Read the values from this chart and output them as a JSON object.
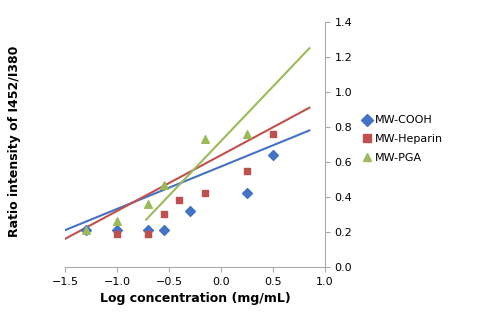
{
  "xlabel": "Log concentration (mg/mL)",
  "ylabel": "Ratio intensity of I452/I380",
  "xlim": [
    -1.5,
    1.0
  ],
  "ylim": [
    0,
    1.4
  ],
  "xticks": [
    -1.5,
    -1.0,
    -0.5,
    0.0,
    0.5,
    1.0
  ],
  "yticks": [
    0,
    0.2,
    0.4,
    0.6,
    0.8,
    1.0,
    1.2,
    1.4
  ],
  "mw_cooh_x": [
    -1.3,
    -1.0,
    -0.7,
    -0.55,
    -0.3,
    0.25,
    0.5
  ],
  "mw_cooh_y": [
    0.21,
    0.21,
    0.21,
    0.21,
    0.32,
    0.42,
    0.64
  ],
  "mw_cooh_color": "#4472C4",
  "mw_cooh_line_x": [
    -1.5,
    0.85
  ],
  "mw_cooh_line_y": [
    0.21,
    0.78
  ],
  "mw_heparin_x": [
    -1.0,
    -0.7,
    -0.55,
    -0.4,
    -0.15,
    0.25,
    0.5
  ],
  "mw_heparin_y": [
    0.19,
    0.19,
    0.3,
    0.38,
    0.42,
    0.55,
    0.76
  ],
  "mw_heparin_color": "#C0504D",
  "mw_heparin_line_x": [
    -1.5,
    0.85
  ],
  "mw_heparin_line_y": [
    0.16,
    0.91
  ],
  "mw_pga_x": [
    -1.3,
    -1.0,
    -0.7,
    -0.55,
    -0.15,
    0.25
  ],
  "mw_pga_y": [
    0.21,
    0.26,
    0.36,
    0.47,
    0.73,
    0.76
  ],
  "mw_pga_color": "#9BBB59",
  "mw_pga_line_x": [
    -0.72,
    0.85
  ],
  "mw_pga_line_y": [
    0.27,
    1.25
  ],
  "legend_labels": [
    "MW-COOH",
    "MW-Heparin",
    "MW-PGA"
  ],
  "legend_colors": [
    "#4472C4",
    "#C0504D",
    "#9BBB59"
  ],
  "legend_markers": [
    "D",
    "s",
    "^"
  ]
}
